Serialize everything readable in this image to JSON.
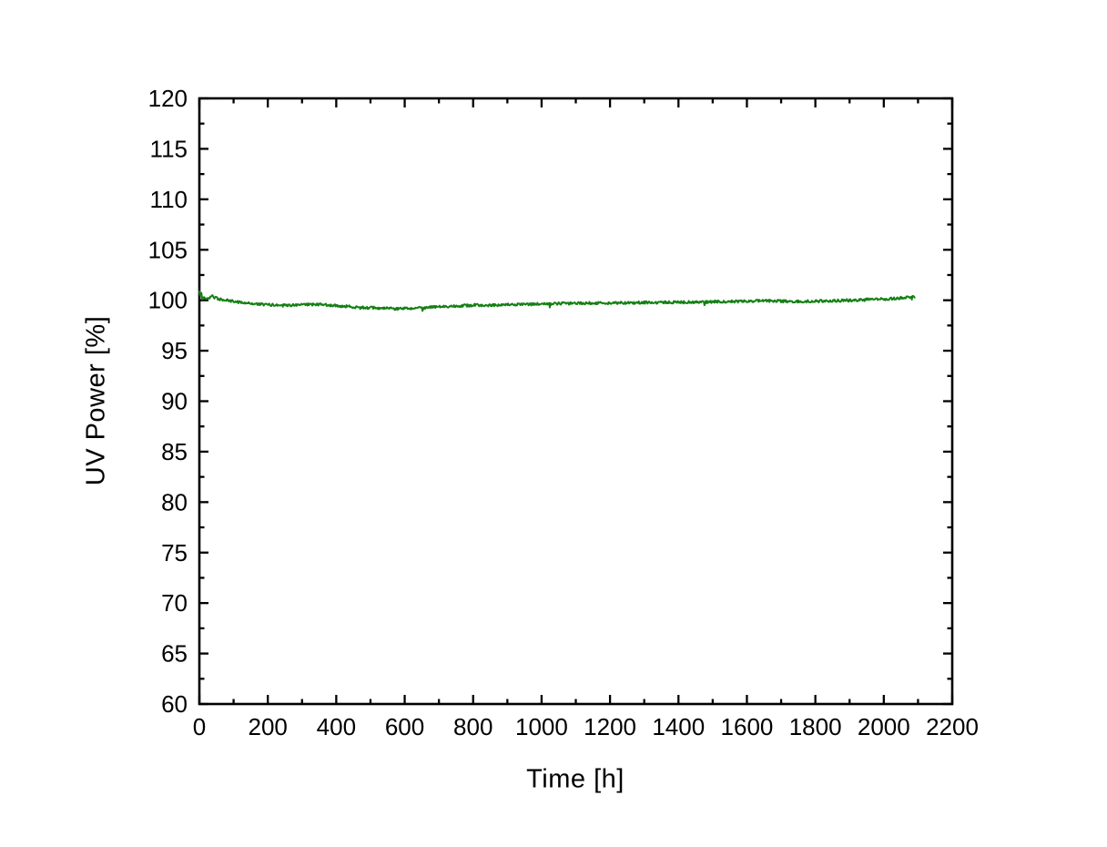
{
  "chart_data": {
    "type": "line",
    "title": "",
    "xlabel": "Time [h]",
    "ylabel": "UV Power [%]",
    "xlim": [
      0,
      2200
    ],
    "ylim": [
      60,
      120
    ],
    "x_major_ticks": [
      0,
      200,
      400,
      600,
      800,
      1000,
      1200,
      1400,
      1600,
      1800,
      2000,
      2200
    ],
    "x_minor_step": 100,
    "y_major_ticks": [
      60,
      65,
      70,
      75,
      80,
      85,
      90,
      95,
      100,
      105,
      110,
      115,
      120
    ],
    "y_minor_step": 2.5,
    "grid": false,
    "legend": "none",
    "frame": "box-with-inward-mirrored-ticks",
    "axis_color": "#000000",
    "background_color": "#ffffff",
    "series": [
      {
        "name": "UV Power",
        "color": "#148014",
        "start_time_h": 0,
        "end_time_h": 2090,
        "points": [
          [
            0,
            100.5
          ],
          [
            6,
            100.35
          ],
          [
            14,
            100.22
          ],
          [
            22,
            100.18
          ],
          [
            30,
            100.28
          ],
          [
            36,
            100.5
          ],
          [
            44,
            100.28
          ],
          [
            56,
            100.12
          ],
          [
            72,
            100.02
          ],
          [
            92,
            99.92
          ],
          [
            115,
            99.82
          ],
          [
            145,
            99.7
          ],
          [
            175,
            99.6
          ],
          [
            205,
            99.55
          ],
          [
            245,
            99.5
          ],
          [
            285,
            99.5
          ],
          [
            320,
            99.57
          ],
          [
            345,
            99.6
          ],
          [
            375,
            99.53
          ],
          [
            405,
            99.45
          ],
          [
            445,
            99.35
          ],
          [
            485,
            99.27
          ],
          [
            525,
            99.21
          ],
          [
            565,
            99.17
          ],
          [
            605,
            99.19
          ],
          [
            645,
            99.25
          ],
          [
            685,
            99.32
          ],
          [
            725,
            99.4
          ],
          [
            765,
            99.46
          ],
          [
            805,
            99.52
          ],
          [
            845,
            99.5
          ],
          [
            885,
            99.54
          ],
          [
            925,
            99.57
          ],
          [
            965,
            99.6
          ],
          [
            1005,
            99.63
          ],
          [
            1055,
            99.67
          ],
          [
            1105,
            99.7
          ],
          [
            1155,
            99.72
          ],
          [
            1205,
            99.72
          ],
          [
            1255,
            99.75
          ],
          [
            1305,
            99.77
          ],
          [
            1355,
            99.78
          ],
          [
            1405,
            99.8
          ],
          [
            1455,
            99.82
          ],
          [
            1505,
            99.85
          ],
          [
            1555,
            99.88
          ],
          [
            1605,
            99.91
          ],
          [
            1655,
            99.95
          ],
          [
            1705,
            99.9
          ],
          [
            1755,
            99.87
          ],
          [
            1805,
            99.9
          ],
          [
            1855,
            99.95
          ],
          [
            1905,
            100.0
          ],
          [
            1955,
            100.06
          ],
          [
            2005,
            100.12
          ],
          [
            2045,
            100.22
          ],
          [
            2075,
            100.3
          ],
          [
            2090,
            100.35
          ]
        ],
        "noise": {
          "amplitude_pct": 0.13,
          "spike_probability": 0.008,
          "spike_depth_pct": 0.33,
          "sample_step_h": 2,
          "seed": 42
        },
        "start_burst": {
          "until_h": 10,
          "amplitude_pct": 0.5
        }
      }
    ]
  }
}
